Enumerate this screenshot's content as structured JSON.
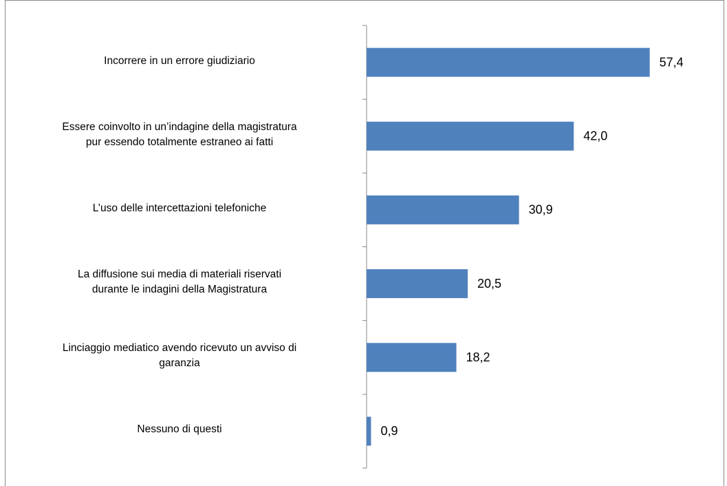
{
  "chart_data": {
    "type": "bar",
    "orientation": "horizontal",
    "categories": [
      [
        "Incorrere in un errore giudiziario"
      ],
      [
        "Essere coinvolto in un’indagine della magistratura",
        "pur essendo totalmente estraneo ai fatti"
      ],
      [
        "L’uso delle intercettazioni telefoniche"
      ],
      [
        "La diffusione sui media di materiali riservati",
        "durante le indagini della Magistratura"
      ],
      [
        "Linciaggio mediatico avendo ricevuto un avviso di",
        "garanzia"
      ],
      [
        "Nessuno di questi"
      ]
    ],
    "values": [
      57.4,
      42.0,
      30.9,
      20.5,
      18.2,
      0.9
    ],
    "value_labels": [
      "57,4",
      "42,0",
      "30,9",
      "20,5",
      "18,2",
      "0,9"
    ],
    "color": "#4f81bd",
    "xlim": [
      0,
      70
    ]
  }
}
